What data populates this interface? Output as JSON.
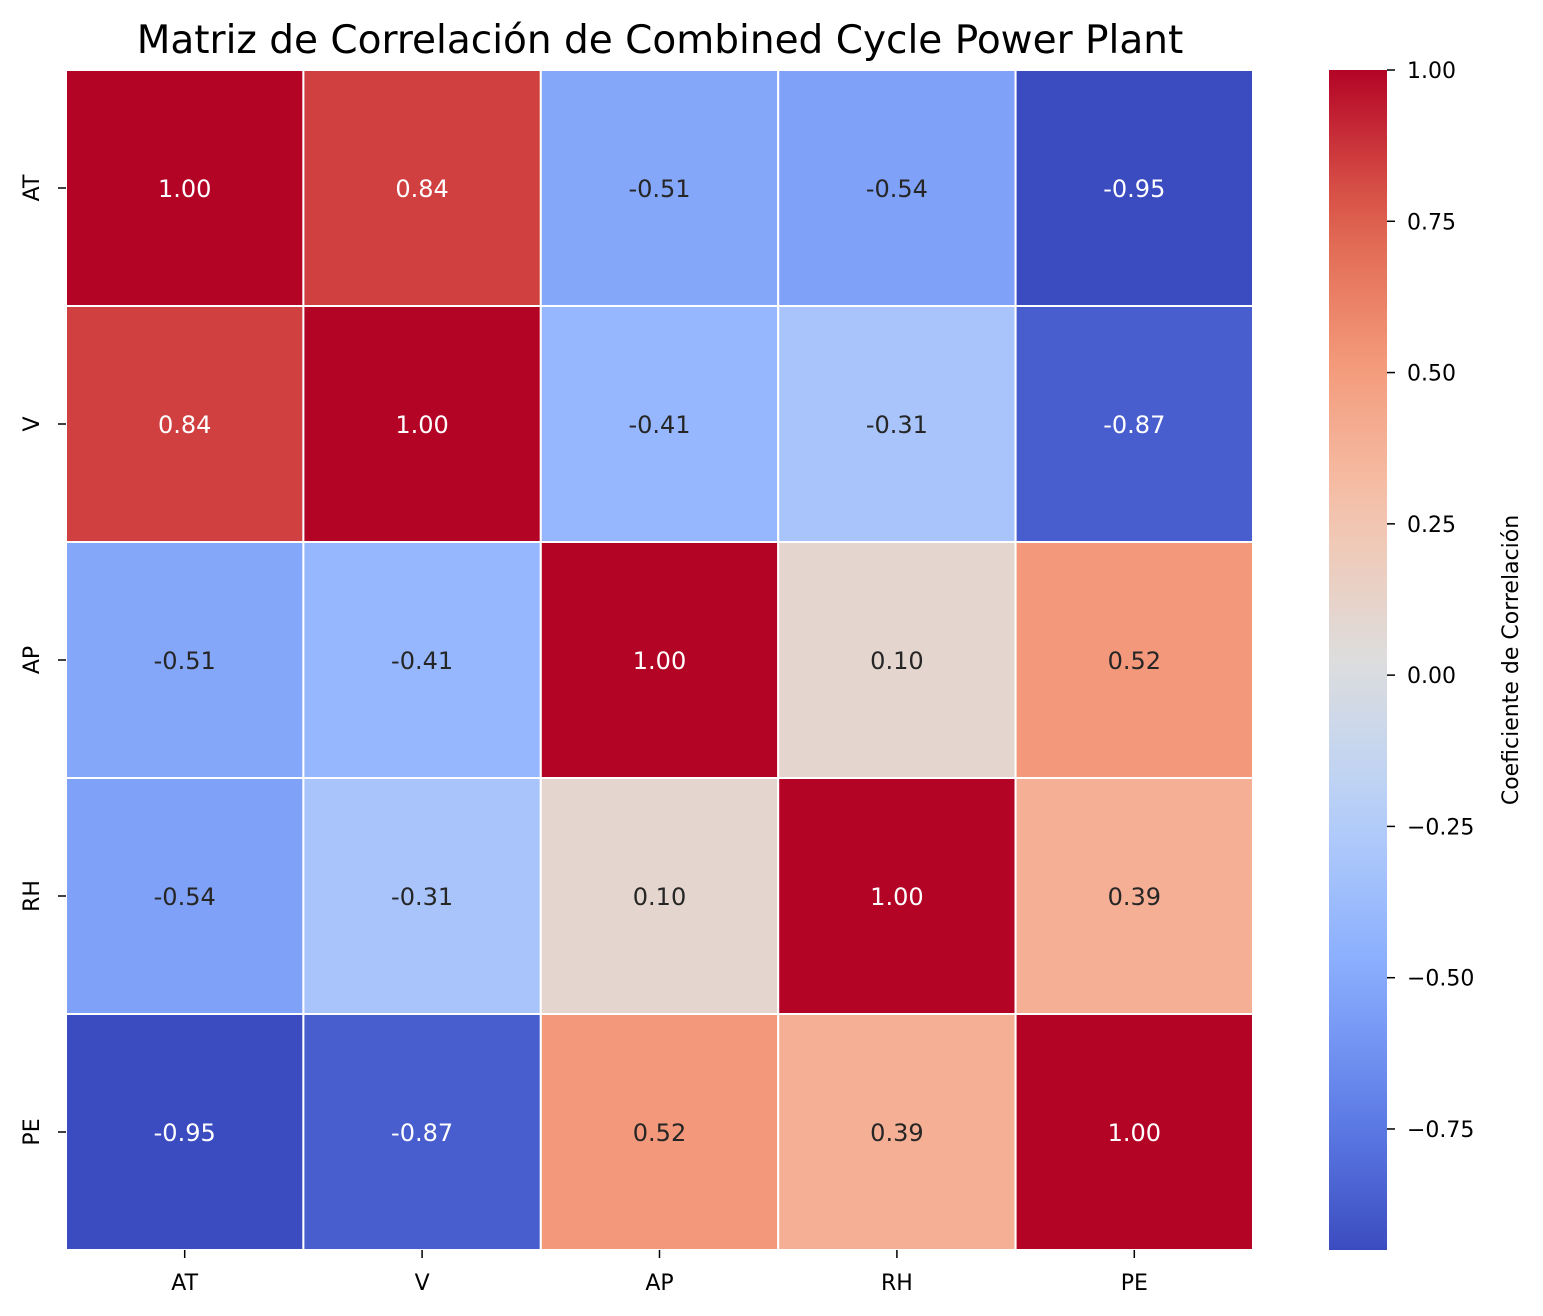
{
  "chart_data": {
    "type": "heatmap",
    "title": "Matriz de Correlación de Combined Cycle Power Plant",
    "x_labels": [
      "AT",
      "V",
      "AP",
      "RH",
      "PE"
    ],
    "y_labels": [
      "AT",
      "V",
      "AP",
      "RH",
      "PE"
    ],
    "values": [
      [
        1.0,
        0.84,
        -0.51,
        -0.54,
        -0.95
      ],
      [
        0.84,
        1.0,
        -0.41,
        -0.31,
        -0.87
      ],
      [
        -0.51,
        -0.41,
        1.0,
        0.1,
        0.52
      ],
      [
        -0.54,
        -0.31,
        0.1,
        1.0,
        0.39
      ],
      [
        -0.95,
        -0.87,
        0.52,
        0.39,
        1.0
      ]
    ],
    "cell_labels": [
      [
        "1.00",
        "0.84",
        "-0.51",
        "-0.54",
        "-0.95"
      ],
      [
        "0.84",
        "1.00",
        "-0.41",
        "-0.31",
        "-0.87"
      ],
      [
        "-0.51",
        "-0.41",
        "1.00",
        "0.10",
        "0.52"
      ],
      [
        "-0.54",
        "-0.31",
        "0.10",
        "1.00",
        "0.39"
      ],
      [
        "-0.95",
        "-0.87",
        "0.52",
        "0.39",
        "1.00"
      ]
    ],
    "colormap": "coolwarm",
    "vmin": -0.95,
    "vmax": 1.0,
    "colorbar": {
      "label": "Coeficiente de Correlación",
      "ticks": [
        1.0,
        0.75,
        0.5,
        0.25,
        0.0,
        -0.25,
        -0.5,
        -0.75
      ],
      "tick_labels": [
        "1.00",
        "0.75",
        "0.50",
        "0.25",
        "0.00",
        "−0.25",
        "−0.50",
        "−0.75"
      ]
    },
    "cell_border_color": "#ffffff"
  }
}
